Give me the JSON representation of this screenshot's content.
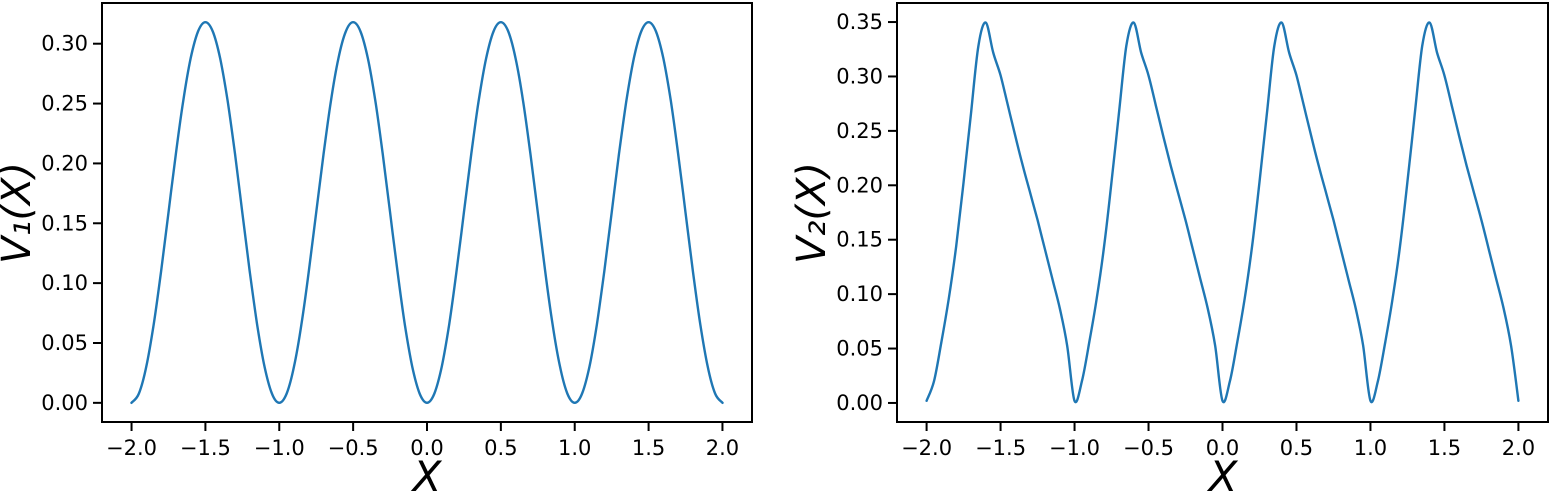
{
  "figure": {
    "background": "#ffffff",
    "axis_color": "#000000",
    "line_color": "#1f77b4"
  },
  "chart_data": [
    {
      "type": "line",
      "title": "",
      "xlabel": "X",
      "ylabel": "V₁(X)",
      "xlim": [
        -2.2,
        2.2
      ],
      "ylim": [
        -0.016,
        0.334
      ],
      "grid": false,
      "legend": null,
      "xticks": [
        -2.0,
        -1.5,
        -1.0,
        -0.5,
        0.0,
        0.5,
        1.0,
        1.5,
        2.0
      ],
      "xtick_labels": [
        "−2.0",
        "−1.5",
        "−1.0",
        "−0.5",
        "0.0",
        "0.5",
        "1.0",
        "1.5",
        "2.0"
      ],
      "yticks": [
        0.0,
        0.05,
        0.1,
        0.15,
        0.2,
        0.25,
        0.3
      ],
      "ytick_labels": [
        "0.00",
        "0.05",
        "0.10",
        "0.15",
        "0.20",
        "0.25",
        "0.30"
      ],
      "peak_value": 0.318,
      "peak_positions": [
        -1.5,
        -0.5,
        0.5,
        1.5
      ],
      "zero_positions": [
        -2,
        -1,
        0,
        1,
        2
      ],
      "series": [
        {
          "name": "V1(X)",
          "color": "#1f77b4",
          "x": [
            -2,
            -1.95,
            -1.9,
            -1.85,
            -1.8,
            -1.75,
            -1.7,
            -1.65,
            -1.6,
            -1.55,
            -1.5,
            -1.45,
            -1.4,
            -1.35,
            -1.3,
            -1.25,
            -1.2,
            -1.15,
            -1.1,
            -1.05,
            -1,
            -0.95,
            -0.9,
            -0.85,
            -0.8,
            -0.75,
            -0.7,
            -0.65,
            -0.6,
            -0.55,
            -0.5,
            -0.45,
            -0.4,
            -0.35,
            -0.3,
            -0.25,
            -0.2,
            -0.15,
            -0.1,
            -0.05,
            0,
            0.05,
            0.1,
            0.15,
            0.2,
            0.25,
            0.3,
            0.35,
            0.4,
            0.45,
            0.5,
            0.55,
            0.6,
            0.65,
            0.7,
            0.75,
            0.8,
            0.85,
            0.9,
            0.95,
            1,
            1.05,
            1.1,
            1.15,
            1.2,
            1.25,
            1.3,
            1.35,
            1.4,
            1.45,
            1.5,
            1.55,
            1.6,
            1.65,
            1.7,
            1.75,
            1.8,
            1.85,
            1.9,
            1.95,
            2
          ],
          "y": [
            0,
            0.0078,
            0.0304,
            0.0655,
            0.1099,
            0.159,
            0.2081,
            0.2525,
            0.2876,
            0.3102,
            0.318,
            0.3102,
            0.2876,
            0.2525,
            0.2081,
            0.159,
            0.1099,
            0.0655,
            0.0304,
            0.0078,
            0,
            0.0078,
            0.0304,
            0.0655,
            0.1099,
            0.159,
            0.2081,
            0.2525,
            0.2876,
            0.3102,
            0.318,
            0.3102,
            0.2876,
            0.2525,
            0.2081,
            0.159,
            0.1099,
            0.0655,
            0.0304,
            0.0078,
            0,
            0.0078,
            0.0304,
            0.0655,
            0.1099,
            0.159,
            0.2081,
            0.2525,
            0.2876,
            0.3102,
            0.318,
            0.3102,
            0.2876,
            0.2525,
            0.2081,
            0.159,
            0.1099,
            0.0655,
            0.0304,
            0.0078,
            0,
            0.0078,
            0.0304,
            0.0655,
            0.1099,
            0.159,
            0.2081,
            0.2525,
            0.2876,
            0.3102,
            0.318,
            0.3102,
            0.2876,
            0.2525,
            0.2081,
            0.159,
            0.1099,
            0.0655,
            0.0304,
            0.0078,
            0
          ]
        }
      ]
    },
    {
      "type": "line",
      "title": "",
      "xlabel": "X",
      "ylabel": "V₂(X)",
      "xlim": [
        -2.2,
        2.2
      ],
      "ylim": [
        -0.0175,
        0.3675
      ],
      "grid": false,
      "legend": null,
      "xticks": [
        -2.0,
        -1.5,
        -1.0,
        -0.5,
        0.0,
        0.5,
        1.0,
        1.5,
        2.0
      ],
      "xtick_labels": [
        "−2.0",
        "−1.5",
        "−1.0",
        "−0.5",
        "0.0",
        "0.5",
        "1.0",
        "1.5",
        "2.0"
      ],
      "yticks": [
        0.0,
        0.05,
        0.1,
        0.15,
        0.2,
        0.25,
        0.3,
        0.35
      ],
      "ytick_labels": [
        "0.00",
        "0.05",
        "0.10",
        "0.15",
        "0.20",
        "0.25",
        "0.30",
        "0.35"
      ],
      "peak_value": 0.35,
      "peak_positions": [
        -1.61,
        -0.61,
        0.39,
        1.39
      ],
      "zero_positions": [
        -2,
        -1,
        0,
        1,
        2
      ],
      "series": [
        {
          "name": "V2(X)",
          "color": "#1f77b4",
          "x": [
            -2,
            -1.95,
            -1.9,
            -1.85,
            -1.8,
            -1.75,
            -1.7,
            -1.65,
            -1.6,
            -1.55,
            -1.5,
            -1.45,
            -1.4,
            -1.35,
            -1.3,
            -1.25,
            -1.2,
            -1.15,
            -1.1,
            -1.05,
            -1,
            -0.95,
            -0.9,
            -0.85,
            -0.8,
            -0.75,
            -0.7,
            -0.65,
            -0.6,
            -0.55,
            -0.5,
            -0.45,
            -0.4,
            -0.35,
            -0.3,
            -0.25,
            -0.2,
            -0.15,
            -0.1,
            -0.05,
            0,
            0.05,
            0.1,
            0.15,
            0.2,
            0.25,
            0.3,
            0.35,
            0.4,
            0.45,
            0.5,
            0.55,
            0.6,
            0.65,
            0.7,
            0.75,
            0.8,
            0.85,
            0.9,
            0.95,
            1,
            1.05,
            1.1,
            1.15,
            1.2,
            1.25,
            1.3,
            1.35,
            1.4,
            1.45,
            1.5,
            1.55,
            1.6,
            1.65,
            1.7,
            1.75,
            1.8,
            1.85,
            1.9,
            1.95,
            2
          ],
          "y": [
            0.002,
            0.02,
            0.056,
            0.096,
            0.144,
            0.203,
            0.266,
            0.328,
            0.3495,
            0.322,
            0.301,
            0.273,
            0.245,
            0.218,
            0.193,
            0.168,
            0.141,
            0.114,
            0.087,
            0.053,
            0.002,
            0.02,
            0.056,
            0.096,
            0.144,
            0.203,
            0.266,
            0.328,
            0.3495,
            0.322,
            0.301,
            0.273,
            0.245,
            0.218,
            0.193,
            0.168,
            0.141,
            0.114,
            0.087,
            0.053,
            0.002,
            0.02,
            0.056,
            0.096,
            0.144,
            0.203,
            0.266,
            0.328,
            0.3495,
            0.322,
            0.301,
            0.273,
            0.245,
            0.218,
            0.193,
            0.168,
            0.141,
            0.114,
            0.087,
            0.053,
            0.002,
            0.02,
            0.056,
            0.096,
            0.144,
            0.203,
            0.266,
            0.328,
            0.3495,
            0.322,
            0.301,
            0.273,
            0.245,
            0.218,
            0.193,
            0.168,
            0.141,
            0.114,
            0.087,
            0.053,
            0.002
          ]
        }
      ]
    }
  ]
}
